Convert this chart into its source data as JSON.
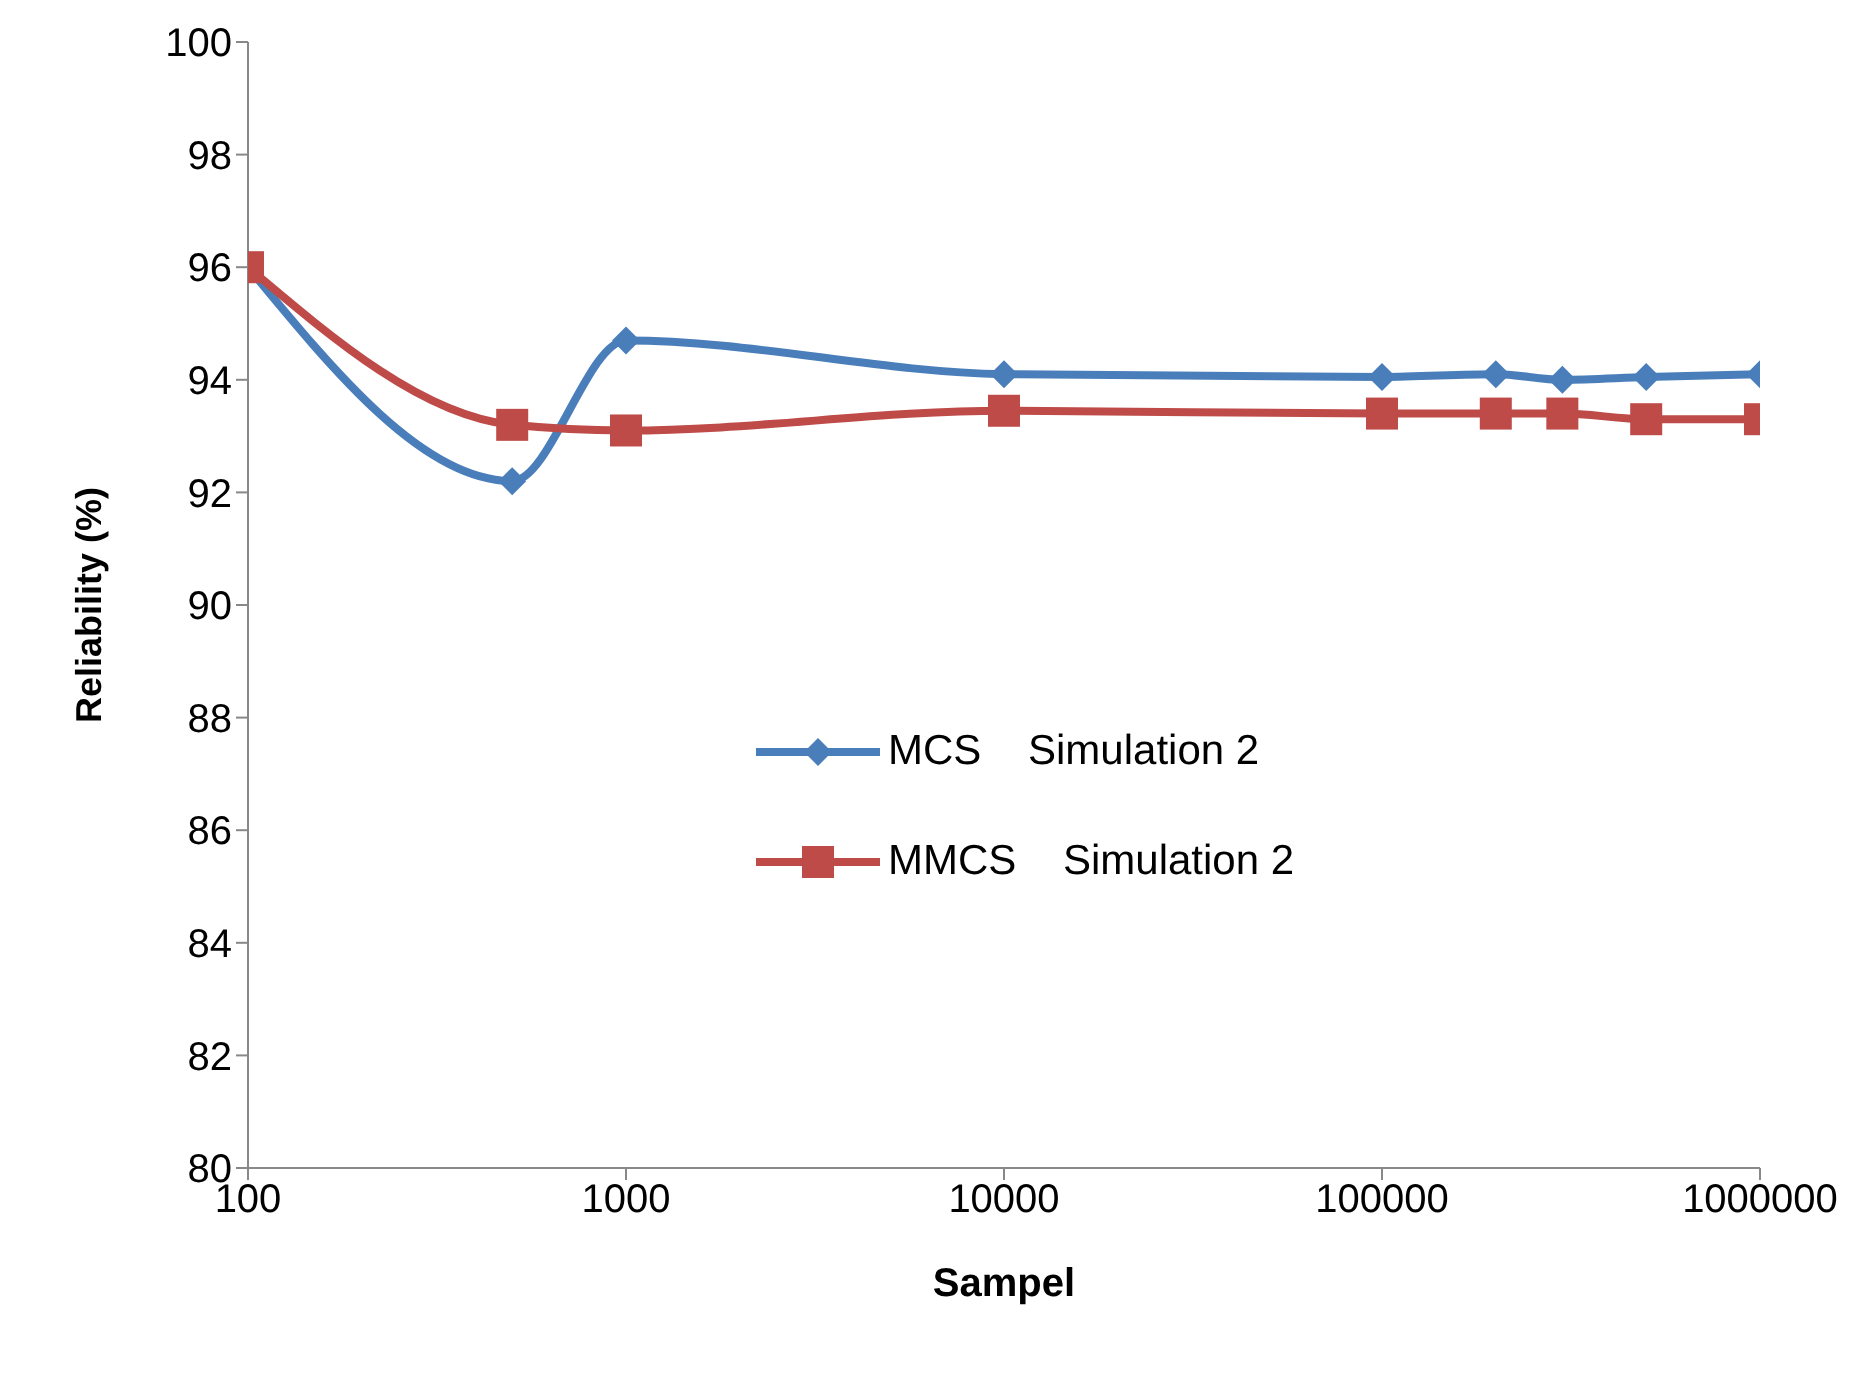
{
  "chart_data": {
    "type": "line",
    "xlabel": "Sampel",
    "ylabel": "Reliability (%)",
    "log": "x",
    "xlim": [
      100,
      1000000
    ],
    "xticks": [
      100,
      1000,
      10000,
      100000,
      1000000
    ],
    "ylim": [
      80,
      100
    ],
    "yticks": [
      80,
      82,
      84,
      86,
      88,
      90,
      92,
      94,
      96,
      98,
      100
    ],
    "grid": false,
    "legend": "center",
    "line_style": "solid",
    "x": [
      100,
      500,
      1000,
      10000,
      100000,
      200000,
      300000,
      500000,
      1000000
    ],
    "series": [
      {
        "name": "MCS    Simulation 2",
        "color": "#4a7ebb",
        "marker": "diamond",
        "values": [
          96.0,
          92.2,
          94.7,
          94.1,
          94.05,
          94.1,
          94.0,
          94.05,
          94.1
        ]
      },
      {
        "name": "MMCS    Simulation 2",
        "color": "#be4b48",
        "marker": "square",
        "values": [
          96.0,
          93.2,
          93.1,
          93.45,
          93.4,
          93.4,
          93.4,
          93.3,
          93.3
        ]
      }
    ]
  }
}
